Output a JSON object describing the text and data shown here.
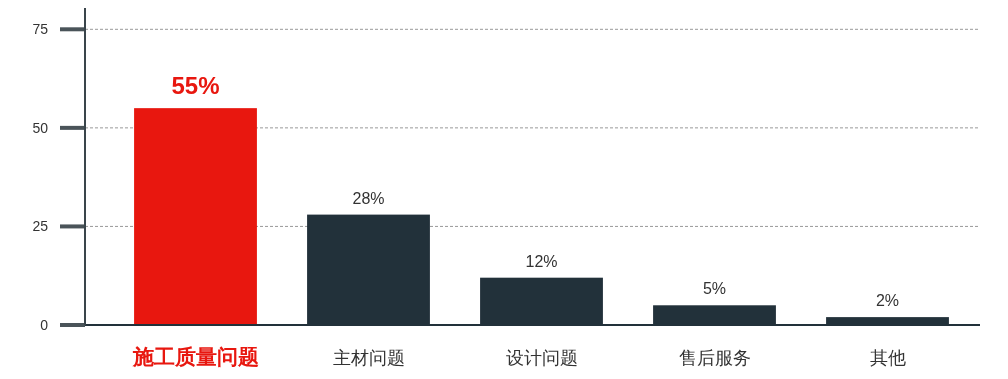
{
  "chart_data": {
    "type": "bar",
    "categories": [
      "施工质量问题",
      "主材问题",
      "设计问题",
      "售后服务",
      "其他"
    ],
    "values": [
      55,
      28,
      12,
      5,
      2
    ],
    "colors": [
      "#e8170f",
      "#22313a",
      "#22313a",
      "#22313a",
      "#22313a"
    ],
    "value_labels": [
      "55%",
      "28%",
      "12%",
      "5%",
      "2%"
    ],
    "ylim": [
      0,
      75
    ],
    "yticks": [
      0,
      25,
      50,
      75
    ],
    "grid": "y"
  }
}
